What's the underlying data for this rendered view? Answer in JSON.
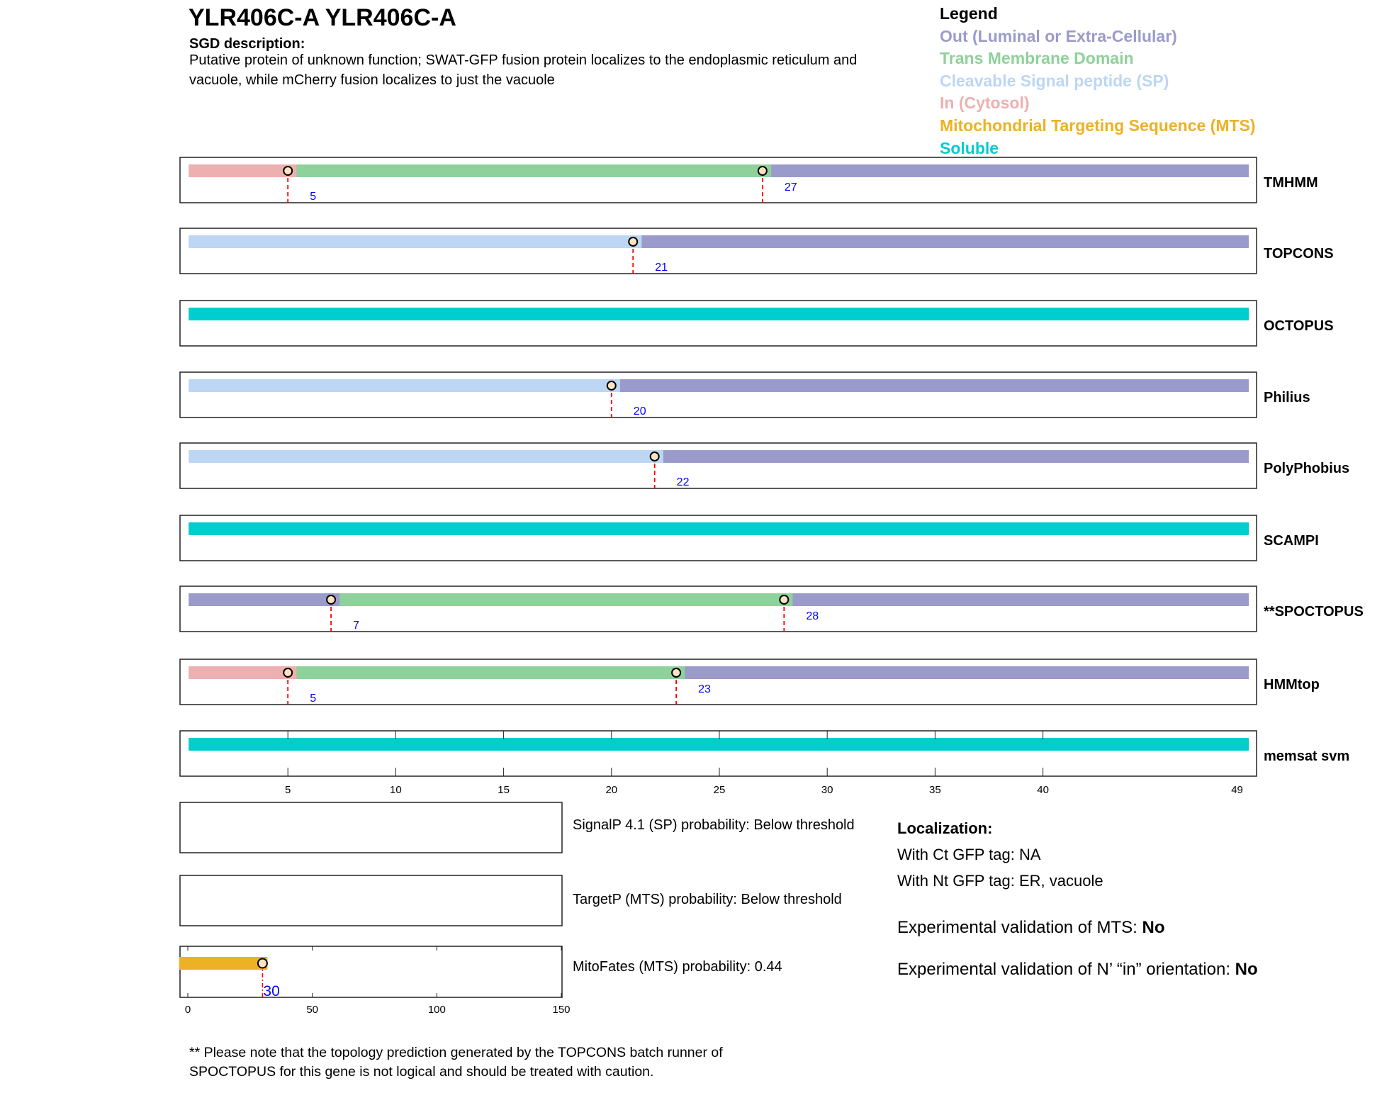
{
  "header": {
    "title": "YLR406C-A  YLR406C-A",
    "sgd_heading": "SGD description:",
    "sgd_text": "Putative protein of unknown function; SWAT-GFP fusion protein localizes to the endoplasmic reticulum and vacuole, while mCherry fusion localizes to just the vacuole"
  },
  "legend": {
    "title": "Legend",
    "items": [
      {
        "label": "Out (Luminal or Extra-Cellular)",
        "color": "#9b9bcb"
      },
      {
        "label": "Trans Membrane Domain",
        "color": "#8fd19a"
      },
      {
        "label": "Cleavable Signal peptide (SP)",
        "color": "#bcd6f4"
      },
      {
        "label": "In (Cytosol)",
        "color": "#edb0b0"
      },
      {
        "label": "Mitochondrial Targeting Sequence (MTS)",
        "color": "#ecb125"
      },
      {
        "label": "Soluble",
        "color": "#00cdcd"
      }
    ]
  },
  "chart_data": {
    "type": "topology-tracks",
    "length": 49,
    "axis_ticks": [
      5,
      10,
      15,
      20,
      25,
      30,
      35,
      40,
      49
    ],
    "colors": {
      "out": "#9b9bcb",
      "tm": "#8fd19a",
      "sp": "#bcd6f4",
      "in": "#edb0b0",
      "soluble": "#00cdcd",
      "mts": "#ecb125"
    },
    "tracks": [
      {
        "name": "TMHMM",
        "segments": [
          [
            "in",
            1,
            5
          ],
          [
            "tm",
            6,
            27
          ],
          [
            "out",
            28,
            49
          ]
        ],
        "boundaries": [
          5,
          27
        ]
      },
      {
        "name": "TOPCONS",
        "segments": [
          [
            "sp",
            1,
            21
          ],
          [
            "out",
            22,
            49
          ]
        ],
        "boundaries": [
          21
        ]
      },
      {
        "name": "OCTOPUS",
        "segments": [
          [
            "soluble",
            1,
            49
          ]
        ],
        "boundaries": []
      },
      {
        "name": "Philius",
        "segments": [
          [
            "sp",
            1,
            20
          ],
          [
            "out",
            21,
            49
          ]
        ],
        "boundaries": [
          20
        ]
      },
      {
        "name": "PolyPhobius",
        "segments": [
          [
            "sp",
            1,
            22
          ],
          [
            "out",
            23,
            49
          ]
        ],
        "boundaries": [
          22
        ]
      },
      {
        "name": "SCAMPI",
        "segments": [
          [
            "soluble",
            1,
            49
          ]
        ],
        "boundaries": []
      },
      {
        "name": "**SPOCTOPUS",
        "segments": [
          [
            "out",
            1,
            7
          ],
          [
            "tm",
            8,
            28
          ],
          [
            "out",
            29,
            49
          ]
        ],
        "boundaries": [
          7,
          28
        ]
      },
      {
        "name": "HMMtop",
        "segments": [
          [
            "in",
            1,
            5
          ],
          [
            "tm",
            6,
            23
          ],
          [
            "out",
            24,
            49
          ]
        ],
        "boundaries": [
          5,
          23
        ]
      },
      {
        "name": "memsat svm",
        "segments": [
          [
            "soluble",
            1,
            49
          ]
        ],
        "boundaries": []
      }
    ],
    "predictors": [
      {
        "label": "SignalP 4.1 (SP) probability: Below threshold"
      },
      {
        "label": "TargetP (MTS) probability: Below threshold"
      },
      {
        "label": "MitoFates (MTS) probability: 0.44",
        "mts_end": 30
      }
    ],
    "mito_axis_ticks": [
      0,
      50,
      100,
      150
    ]
  },
  "localization": {
    "heading": "Localization:",
    "ct": "With Ct GFP tag: NA",
    "nt": "With Nt GFP tag: ER, vacuole",
    "mts_label": "Experimental validation of MTS: ",
    "mts_value": "No",
    "nin_label": "Experimental validation of N’ “in” orientation: ",
    "nin_value": "No"
  },
  "note": {
    "line1": "** Please note that the topology prediction generated by the TOPCONS batch runner of",
    "line2": "SPOCTOPUS for this gene is not logical and should be treated with caution."
  }
}
